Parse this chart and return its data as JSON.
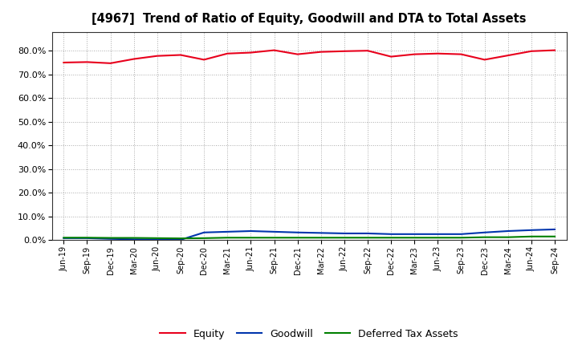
{
  "title": "[4967]  Trend of Ratio of Equity, Goodwill and DTA to Total Assets",
  "x_labels": [
    "Jun-19",
    "Sep-19",
    "Dec-19",
    "Mar-20",
    "Jun-20",
    "Sep-20",
    "Dec-20",
    "Mar-21",
    "Jun-21",
    "Sep-21",
    "Dec-21",
    "Mar-22",
    "Jun-22",
    "Sep-22",
    "Dec-22",
    "Mar-23",
    "Jun-23",
    "Sep-23",
    "Dec-23",
    "Mar-24",
    "Jun-24",
    "Sep-24"
  ],
  "equity": [
    75.0,
    75.2,
    74.7,
    76.5,
    77.8,
    78.2,
    76.2,
    78.8,
    79.2,
    80.2,
    78.5,
    79.5,
    79.8,
    80.0,
    77.5,
    78.5,
    78.8,
    78.5,
    76.2,
    78.0,
    79.8,
    80.2
  ],
  "goodwill": [
    0.8,
    0.8,
    0.5,
    0.3,
    0.2,
    0.1,
    3.2,
    3.5,
    3.8,
    3.5,
    3.2,
    3.0,
    2.8,
    2.8,
    2.5,
    2.5,
    2.5,
    2.5,
    3.2,
    3.8,
    4.2,
    4.5
  ],
  "dta": [
    1.0,
    1.0,
    0.9,
    0.9,
    0.8,
    0.7,
    0.8,
    1.0,
    1.0,
    1.0,
    1.0,
    1.0,
    1.0,
    1.0,
    1.0,
    1.0,
    1.0,
    1.0,
    1.2,
    1.2,
    1.5,
    1.5
  ],
  "equity_color": "#e8001c",
  "goodwill_color": "#0035ad",
  "dta_color": "#008000",
  "bg_color": "#ffffff",
  "grid_color": "#aaaaaa",
  "ylim": [
    0,
    88
  ],
  "yticks": [
    0,
    10,
    20,
    30,
    40,
    50,
    60,
    70,
    80
  ],
  "legend_labels": [
    "Equity",
    "Goodwill",
    "Deferred Tax Assets"
  ]
}
